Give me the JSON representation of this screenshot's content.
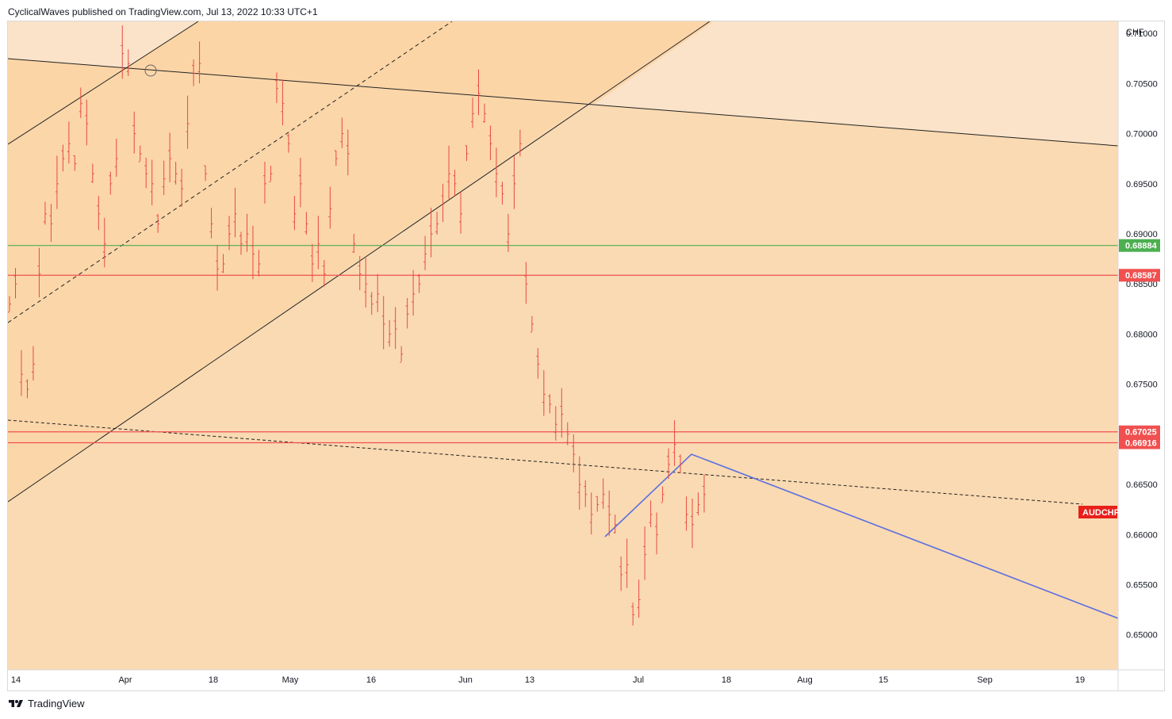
{
  "header": {
    "publisher_line": "CyclicalWaves published on TradingView.com, Jul 13, 2022 10:33 UTC+1"
  },
  "footer": {
    "brand": "TradingView"
  },
  "colors": {
    "background_band": "#fbe3c9",
    "channel_fill": "#fbd3a4",
    "lower_fill": "#fadab2",
    "candle": "#e84a43",
    "green_line": "#4caf50",
    "red_line": "#f05050",
    "blue_line": "#5b6fe0",
    "symbol_tag": "#e8201a"
  },
  "chart_data": {
    "type": "candlestick",
    "symbol": "AUDCHF",
    "currency": "CHF",
    "ylim": [
      0.6465,
      0.7112
    ],
    "y_ticks": [
      "0.71000",
      "0.70500",
      "0.70000",
      "0.69500",
      "0.69000",
      "0.68500",
      "0.68000",
      "0.67500",
      "0.67000",
      "0.66500",
      "0.66000",
      "0.65500",
      "0.65000"
    ],
    "x_ticks": [
      "14",
      "Apr",
      "18",
      "May",
      "16",
      "Jun",
      "13",
      "Jul",
      "18",
      "Aug",
      "15",
      "Sep",
      "19"
    ],
    "price_tags": [
      {
        "label": "0.68884",
        "color": "green"
      },
      {
        "label": "0.68587",
        "color": "red"
      },
      {
        "label": "0.67025",
        "color": "red"
      },
      {
        "label": "0.66916",
        "color": "red"
      }
    ],
    "horizontal_levels": [
      0.68884,
      0.68587,
      0.67025,
      0.66916
    ],
    "symbol_tag": "AUDCHF",
    "price_path": [
      [
        0.683,
        0.685,
        0.676,
        0.6745,
        0.677,
        0.686,
        0.692,
        0.691,
        0.695,
        0.6975,
        0.699,
        0.697,
        0.703,
        0.701,
        0.696,
        0.692,
        0.689,
        0.695,
        0.6975
      ],
      [
        0.708,
        0.707,
        0.7,
        0.698,
        0.696,
        0.695,
        0.691,
        0.6955,
        0.6975,
        0.696,
        0.6945,
        0.701,
        0.706,
        0.707,
        0.696,
        0.691,
        0.6865,
        0.687,
        0.69
      ],
      [
        0.692,
        0.689,
        0.69,
        0.688,
        0.687,
        0.695,
        0.696,
        0.7045,
        0.703,
        0.699,
        0.692,
        0.695,
        0.691,
        0.687,
        0.689,
        0.686,
        0.6925,
        0.6975,
        0.7
      ],
      [
        0.698,
        0.689,
        0.686,
        0.685,
        0.683,
        0.684,
        0.681,
        0.68,
        0.6805,
        0.678,
        0.682,
        0.684,
        0.685,
        0.688,
        0.69,
        0.691,
        0.693,
        0.696,
        0.695
      ],
      [
        0.692,
        0.698,
        0.702,
        0.704,
        0.702,
        0.699,
        0.696,
        0.694,
        0.69,
        0.695,
        0.699,
        0.685,
        0.681,
        0.677,
        0.674,
        0.673,
        0.671,
        0.672,
        0.67
      ],
      [
        0.668,
        0.665,
        0.664,
        0.662,
        0.663,
        0.664,
        0.662,
        0.661,
        0.656,
        0.657,
        0.652,
        0.6535,
        0.658,
        0.662,
        0.66,
        0.664,
        0.667,
        0.669,
        0.667
      ],
      [
        0.662,
        0.661,
        0.663,
        0.664
      ]
    ]
  }
}
